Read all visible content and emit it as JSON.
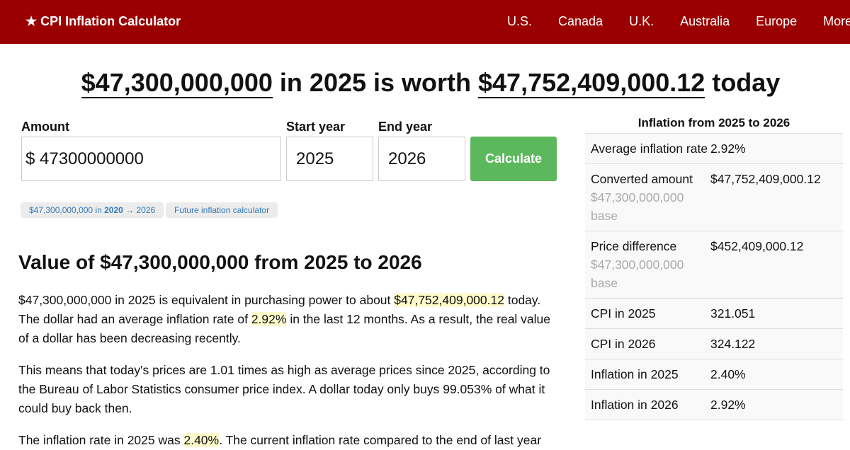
{
  "nav": {
    "brand": "★ CPI Inflation Calculator",
    "links": [
      "U.S.",
      "Canada",
      "U.K.",
      "Australia",
      "Europe",
      "More"
    ]
  },
  "headline": {
    "amount": "$47,300,000,000",
    "mid": " in 2025 is worth ",
    "result": "$47,752,409,000.12",
    "end": " today"
  },
  "form": {
    "amount_label": "Amount",
    "amount_value": "$ 47300000000",
    "start_label": "Start year",
    "start_value": "2025",
    "end_label": "End year",
    "end_value": "2026",
    "calculate": "Calculate"
  },
  "pills": {
    "p1a": "$47,300,000,000 in ",
    "p1b": "2020",
    "p1c": " → 2026",
    "p2": "Future inflation calculator"
  },
  "section_title": "Value of $47,300,000,000 from 2025 to 2026",
  "para1": {
    "a": "$47,300,000,000 in 2025 is equivalent in purchasing power to about ",
    "b": "$47,752,409,000.12",
    "c": " today. The dollar had an average inflation rate of ",
    "d": "2.92%",
    "e": " in the last 12 months. As a result, the real value of a dollar has been decreasing recently."
  },
  "para2": "This means that today's prices are 1.01 times as high as average prices since 2025, according to the Bureau of Labor Statistics consumer price index. A dollar today only buys 99.053% of what it could buy back then.",
  "para3": {
    "a": "The inflation rate in 2025 was ",
    "b": "2.40%",
    "c": ". The current inflation rate compared to the end of last year"
  },
  "sidebar": {
    "title": "Inflation from 2025 to 2026",
    "rows": [
      {
        "k": "Average inflation rate",
        "v": "2.92%"
      },
      {
        "k": "Converted amount",
        "sub": "$47,300,000,000 base",
        "v": "$47,752,409,000.12"
      },
      {
        "k": "Price difference",
        "sub": "$47,300,000,000 base",
        "v": "$452,409,000.12"
      },
      {
        "k": "CPI in 2025",
        "v": "321.051"
      },
      {
        "k": "CPI in 2026",
        "v": "324.122"
      },
      {
        "k": "Inflation in 2025",
        "v": "2.40%"
      },
      {
        "k": "Inflation in 2026",
        "v": "2.92%"
      }
    ]
  }
}
